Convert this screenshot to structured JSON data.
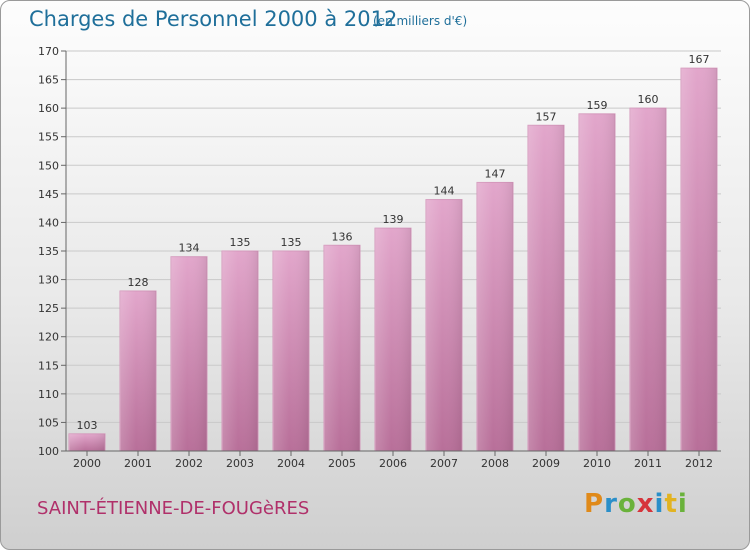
{
  "header": {
    "title": "Charges de Personnel 2000 à 2012",
    "subtitle": "(en milliers d'€)"
  },
  "footer": {
    "city": "SAINT-ÉTIENNE-DE-FOUGèRES",
    "logo_letters": [
      "P",
      "r",
      "o",
      "x",
      "i",
      "t",
      "i"
    ]
  },
  "colors": {
    "bar_top": "#e2a6cb",
    "bar_bottom": "#b86f99",
    "bar_edge": "#d497bb",
    "title": "#1f6f9a",
    "city": "#b0306a",
    "grid": "#c9c9c9",
    "axis": "#666666"
  },
  "chart_data": {
    "type": "bar",
    "categories": [
      "2000",
      "2001",
      "2002",
      "2003",
      "2004",
      "2005",
      "2006",
      "2007",
      "2008",
      "2009",
      "2010",
      "2011",
      "2012"
    ],
    "values": [
      103,
      128,
      134,
      135,
      135,
      136,
      139,
      144,
      147,
      157,
      159,
      160,
      167
    ],
    "yticks": [
      100,
      105,
      110,
      115,
      120,
      125,
      130,
      135,
      140,
      145,
      150,
      155,
      160,
      165,
      170
    ],
    "ylim": [
      100,
      170
    ],
    "grid": true,
    "legend": "none"
  }
}
